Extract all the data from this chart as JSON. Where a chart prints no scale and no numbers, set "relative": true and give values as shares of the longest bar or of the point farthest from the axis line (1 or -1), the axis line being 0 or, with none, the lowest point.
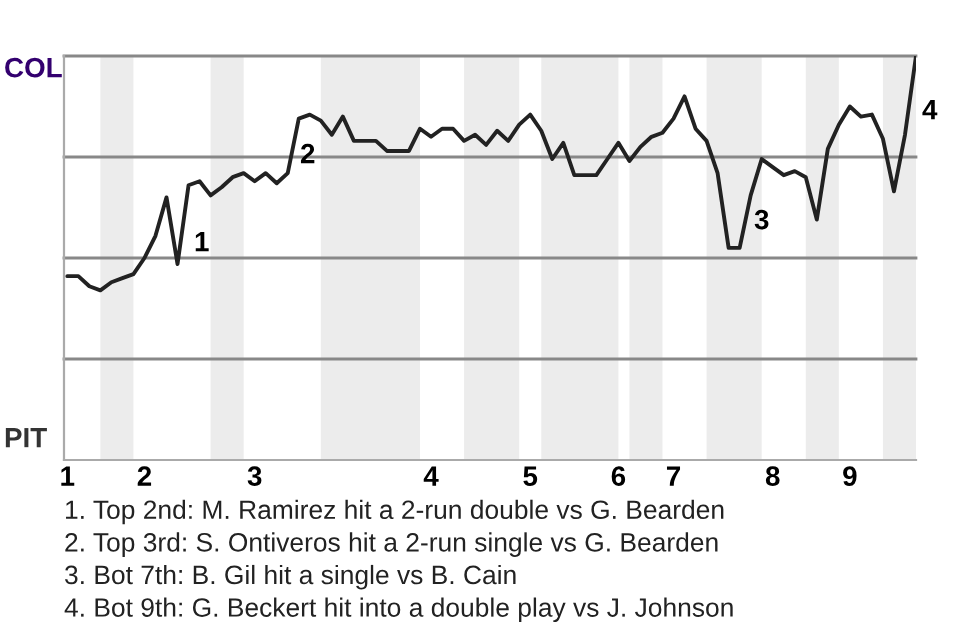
{
  "chart_data": {
    "type": "line",
    "relative": true,
    "grid": "y",
    "categories": [
      "1",
      null,
      null,
      null,
      null,
      null,
      null,
      "2",
      null,
      null,
      null,
      null,
      null,
      null,
      null,
      null,
      null,
      "3",
      null,
      null,
      null,
      null,
      null,
      null,
      null,
      null,
      null,
      null,
      null,
      null,
      null,
      null,
      null,
      "4",
      null,
      null,
      null,
      null,
      null,
      null,
      null,
      null,
      "5",
      null,
      null,
      null,
      null,
      null,
      null,
      null,
      "6",
      null,
      null,
      null,
      null,
      "7",
      null,
      null,
      null,
      null,
      null,
      null,
      null,
      null,
      "8",
      null,
      null,
      null,
      null,
      null,
      null,
      "9",
      null,
      null,
      null,
      null,
      null,
      null
    ],
    "series": [
      {
        "color": "#222222",
        "values": [
          0.455,
          0.455,
          0.43,
          0.42,
          0.44,
          0.45,
          0.46,
          0.5,
          0.555,
          0.65,
          0.485,
          0.68,
          0.69,
          0.655,
          0.675,
          0.7,
          0.71,
          0.69,
          0.71,
          0.685,
          0.71,
          0.845,
          0.855,
          0.84,
          0.805,
          0.85,
          0.79,
          0.79,
          0.79,
          0.765,
          0.765,
          0.765,
          0.82,
          0.8,
          0.82,
          0.82,
          0.79,
          0.805,
          0.78,
          0.815,
          0.79,
          0.83,
          0.855,
          0.815,
          0.745,
          0.785,
          0.705,
          0.705,
          0.705,
          0.745,
          0.785,
          0.74,
          0.775,
          0.8,
          0.81,
          0.845,
          0.9,
          0.82,
          0.79,
          0.71,
          0.525,
          0.525,
          0.655,
          0.745,
          0.725,
          0.705,
          0.715,
          0.7,
          0.595,
          0.77,
          0.83,
          0.875,
          0.85,
          0.855,
          0.795,
          0.665,
          0.805,
          1.0
        ]
      }
    ],
    "annotations": [
      "COL",
      "PIT",
      "1",
      "2",
      "3",
      "4",
      "1. Top 2nd: M. Ramirez hit a 2-run double vs G. Bearden",
      "2. Top 3rd: S. Ontiveros hit a 2-run single vs G. Bearden",
      "3. Bot 7th: B. Gil hit a single vs B. Cain",
      "4. Bot 9th: G. Beckert hit into a double play vs J. Johnson"
    ]
  }
}
